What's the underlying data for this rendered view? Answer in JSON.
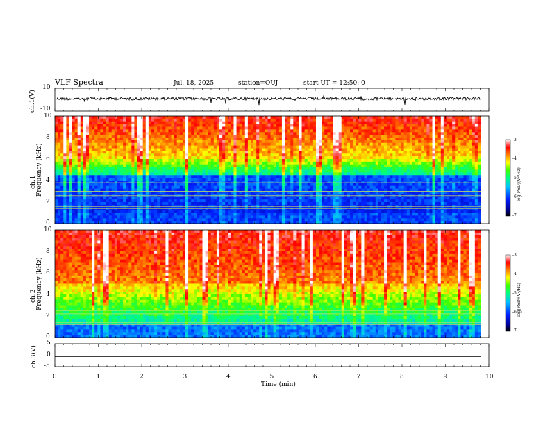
{
  "header": {
    "title": "VLF Spectra",
    "date": "Jul. 18, 2025",
    "station": "station=OUJ",
    "start": "start UT = 12:50: 0"
  },
  "panels": {
    "ch1_wave": {
      "label": "ch.1(V)",
      "ticks": [
        "10",
        "-10"
      ]
    },
    "ch1_spec": {
      "label1": "ch.1",
      "label2": "Frequency (kHz)",
      "ticks": [
        "10",
        "8",
        "6",
        "4",
        "2",
        "0"
      ]
    },
    "ch2_spec": {
      "label1": "ch.2",
      "label2": "Frequency (kHz)",
      "ticks": [
        "10",
        "8",
        "6",
        "4",
        "2",
        "0"
      ]
    },
    "ch3_wave": {
      "label": "ch.3(V)",
      "ticks": [
        "5",
        "0",
        "-5"
      ]
    }
  },
  "colorbar": {
    "label": "log(PSD)(V²/Hz)",
    "ticks": [
      "-3",
      "-4",
      "-5",
      "-6",
      "-7"
    ],
    "colors": [
      "#000080",
      "#0000ff",
      "#00c0ff",
      "#00ffa0",
      "#40ff00",
      "#ffff00",
      "#ff8000",
      "#ff0000",
      "#ffffff"
    ]
  },
  "x_axis": {
    "label": "Time (min)",
    "ticks": [
      "0",
      "1",
      "2",
      "3",
      "4",
      "5",
      "6",
      "7",
      "8",
      "9",
      "10"
    ]
  },
  "chart_data": [
    {
      "type": "line",
      "name": "ch.1(V)",
      "ylabel": "ch.1(V)",
      "ylim": [
        -10,
        10
      ],
      "xlim": [
        0,
        10
      ],
      "baseline": 0,
      "notes": "noisy waveform around 0 V"
    },
    {
      "type": "heatmap",
      "name": "ch.1 spectrogram",
      "ylabel": "Frequency (kHz)",
      "ylim": [
        0,
        10
      ],
      "xlim": [
        0,
        9.8
      ],
      "colorbar_range": [
        -7,
        -3
      ]
    },
    {
      "type": "heatmap",
      "name": "ch.2 spectrogram",
      "ylabel": "Frequency (kHz)",
      "ylim": [
        0,
        10
      ],
      "xlim": [
        0,
        9.8
      ],
      "colorbar_range": [
        -7,
        -3
      ]
    },
    {
      "type": "line",
      "name": "ch.3(V)",
      "ylabel": "ch.3(V)",
      "ylim": [
        -5,
        5
      ],
      "xlim": [
        0,
        9.8
      ],
      "values_const": -1.5
    }
  ]
}
